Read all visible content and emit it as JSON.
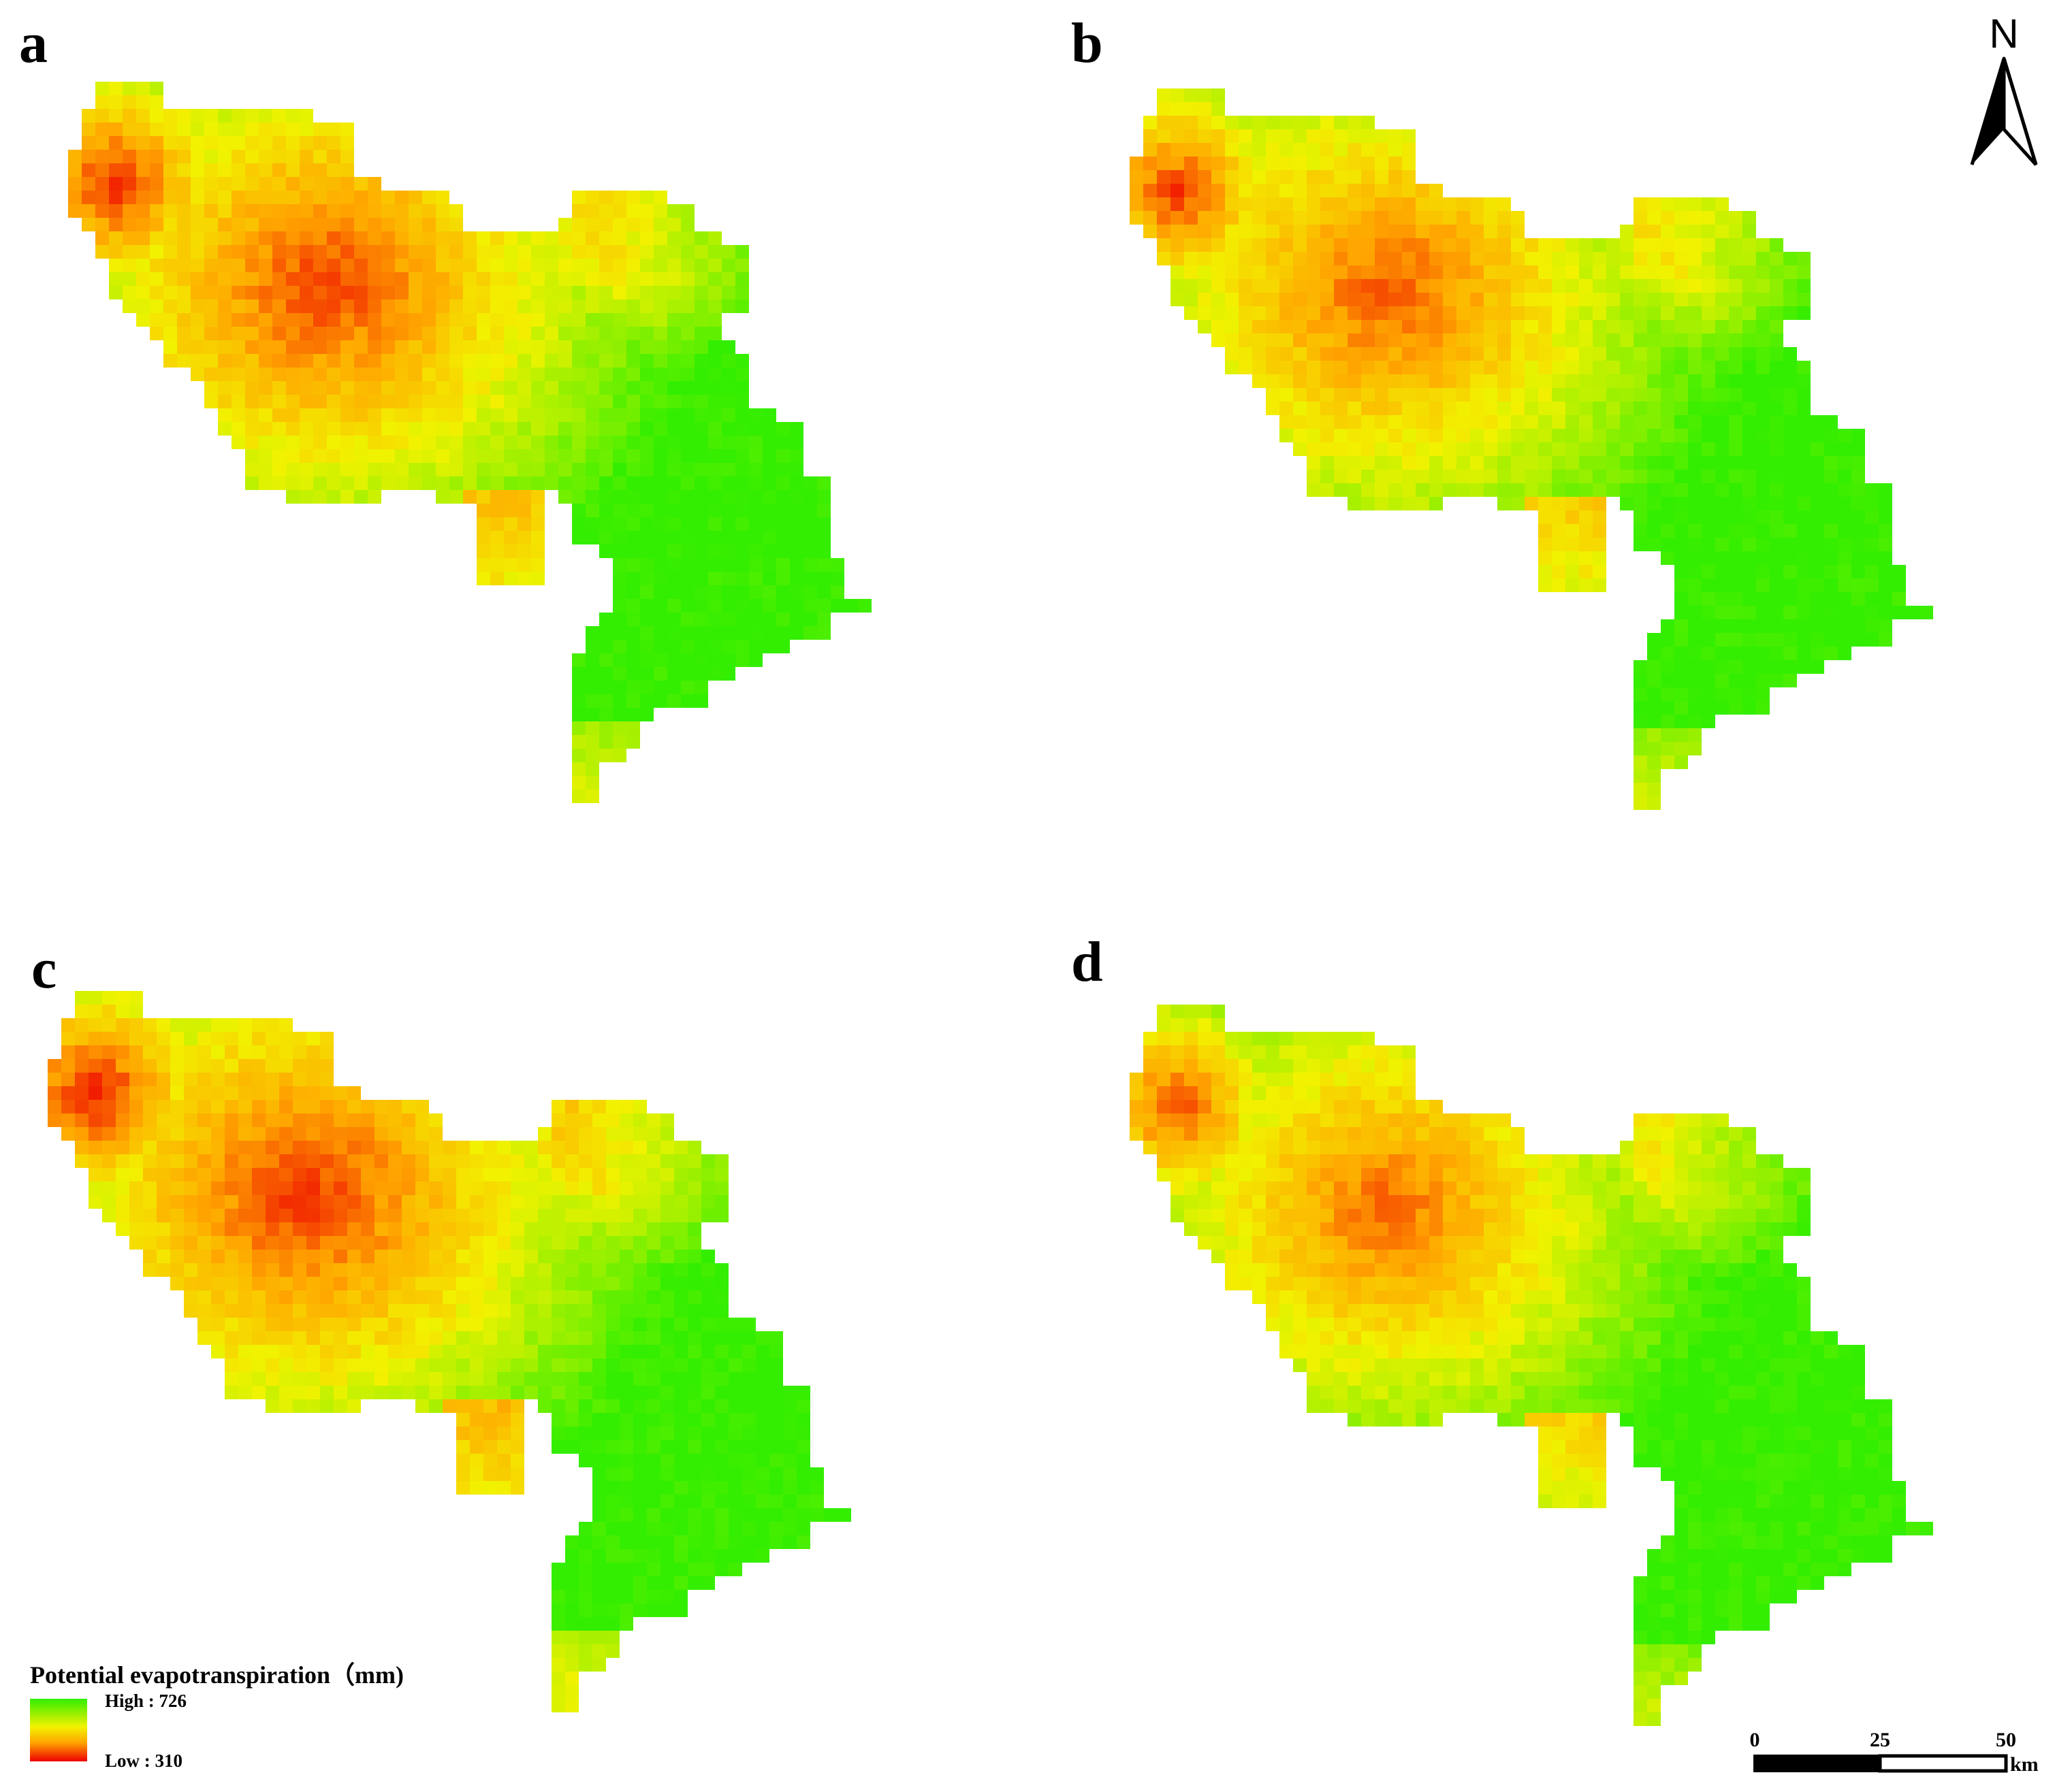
{
  "panels": [
    {
      "label": "a",
      "variant": 0
    },
    {
      "label": "b",
      "variant": 1
    },
    {
      "label": "c",
      "variant": 2
    },
    {
      "label": "d",
      "variant": 3
    }
  ],
  "legend": {
    "title": "Potential evapotranspiration（mm)",
    "high_label": "High : 726",
    "low_label": "Low : 310",
    "high_value": 726,
    "low_value": 310,
    "colors": {
      "high": "#33ee00",
      "mid": "#f2f200",
      "mid_low": "#ffa500",
      "low": "#ee0000"
    }
  },
  "north_arrow": {
    "label": "N"
  },
  "scale_bar": {
    "ticks": [
      "0",
      "25",
      "50"
    ],
    "unit": "km"
  }
}
